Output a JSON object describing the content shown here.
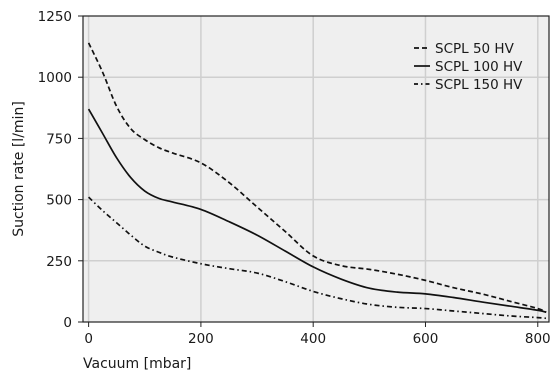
{
  "chart_data": {
    "type": "line",
    "xlabel": "Vacuum [mbar]",
    "ylabel": "Suction rate [l/min]",
    "xlim": [
      -10,
      820
    ],
    "ylim": [
      0,
      1250
    ],
    "x_ticks": [
      0,
      200,
      400,
      600,
      800
    ],
    "y_ticks": [
      0,
      250,
      500,
      750,
      1000,
      1250
    ],
    "x_tick_labels": [
      "0",
      "200",
      "400",
      "600",
      "800"
    ],
    "y_tick_labels": [
      "0",
      "250",
      "500",
      "750",
      "1000",
      "1250"
    ],
    "grid": true,
    "background": "#efefef",
    "grid_color": "#cfcfcf",
    "line_color": "#111111",
    "legend_position": "top-right",
    "series": [
      {
        "name": "SCPL 50 HV",
        "dash": "dashed",
        "x": [
          0,
          25,
          50,
          75,
          100,
          125,
          150,
          200,
          250,
          300,
          350,
          400,
          450,
          500,
          550,
          600,
          650,
          700,
          750,
          800,
          815
        ],
        "y": [
          1140,
          1020,
          880,
          790,
          745,
          712,
          690,
          650,
          570,
          470,
          370,
          270,
          230,
          215,
          195,
          170,
          140,
          115,
          85,
          55,
          40
        ]
      },
      {
        "name": "SCPL 100 HV",
        "dash": "solid",
        "x": [
          0,
          25,
          50,
          75,
          100,
          125,
          150,
          200,
          250,
          300,
          350,
          400,
          450,
          500,
          550,
          600,
          650,
          700,
          750,
          800,
          815
        ],
        "y": [
          870,
          770,
          670,
          590,
          535,
          505,
          490,
          460,
          410,
          355,
          290,
          225,
          175,
          138,
          122,
          115,
          100,
          82,
          65,
          48,
          40
        ]
      },
      {
        "name": "SCPL 150 HV",
        "dash": "dashdot",
        "x": [
          0,
          25,
          50,
          75,
          100,
          125,
          150,
          200,
          250,
          300,
          350,
          400,
          450,
          500,
          550,
          600,
          650,
          700,
          750,
          800,
          815
        ],
        "y": [
          510,
          455,
          405,
          355,
          310,
          285,
          265,
          238,
          218,
          200,
          165,
          125,
          95,
          72,
          60,
          55,
          45,
          35,
          25,
          18,
          15
        ]
      }
    ]
  }
}
